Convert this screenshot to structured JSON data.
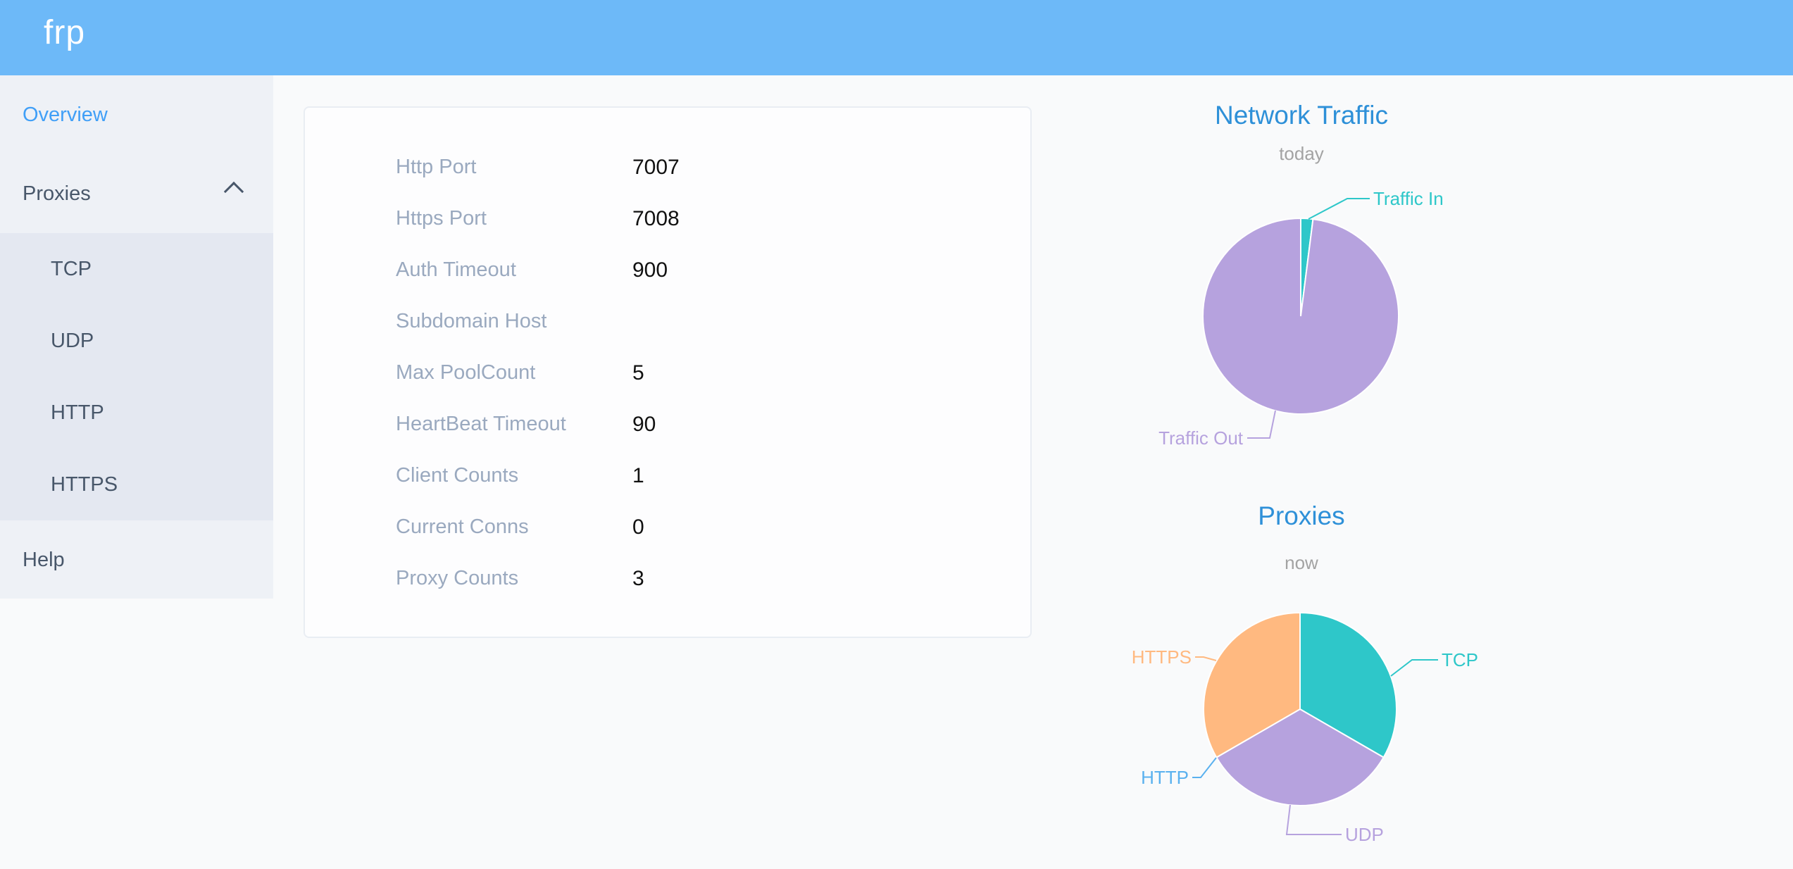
{
  "app": {
    "logo": "frp"
  },
  "colors": {
    "header_bg": "#6db9f8",
    "sidebar_bg": "#eef1f6",
    "submenu_bg": "#e4e8f1",
    "menu_text": "#48576a",
    "menu_active": "#409ff7",
    "chart_title_blue": "#2e90d8",
    "card_label_gray": "#9aa9bf",
    "teal": "#2ec7c9",
    "purple": "#b6a2de",
    "blue": "#5ab1ef",
    "orange": "#ffb980"
  },
  "sidebar": {
    "overview_label": "Overview",
    "proxies_label": "Proxies",
    "proxies_children": [
      {
        "label": "TCP"
      },
      {
        "label": "UDP"
      },
      {
        "label": "HTTP"
      },
      {
        "label": "HTTPS"
      }
    ],
    "help_label": "Help"
  },
  "server_info": {
    "rows": [
      {
        "label": "Http Port",
        "value": "7007"
      },
      {
        "label": "Https Port",
        "value": "7008"
      },
      {
        "label": "Auth Timeout",
        "value": "900"
      },
      {
        "label": "Subdomain Host",
        "value": ""
      },
      {
        "label": "Max PoolCount",
        "value": "5"
      },
      {
        "label": "HeartBeat Timeout",
        "value": "90"
      },
      {
        "label": "Client Counts",
        "value": "1"
      },
      {
        "label": "Current Conns",
        "value": "0"
      },
      {
        "label": "Proxy Counts",
        "value": "3"
      }
    ]
  },
  "chart_data": [
    {
      "type": "pie",
      "title": "Network Traffic",
      "subtitle": "today",
      "unit": "percent of total traffic (estimated from pie angles)",
      "legend_position": "leader-line labels",
      "series": [
        {
          "name": "Traffic In",
          "value": 2,
          "color": "#2ec7c9"
        },
        {
          "name": "Traffic Out",
          "value": 98,
          "color": "#b6a2de"
        }
      ]
    },
    {
      "type": "pie",
      "title": "Proxies",
      "subtitle": "now",
      "unit": "proxy count",
      "legend_position": "leader-line labels",
      "series": [
        {
          "name": "TCP",
          "value": 1,
          "color": "#2ec7c9"
        },
        {
          "name": "UDP",
          "value": 1,
          "color": "#b6a2de"
        },
        {
          "name": "HTTP",
          "value": 0,
          "color": "#5ab1ef"
        },
        {
          "name": "HTTPS",
          "value": 1,
          "color": "#ffb980"
        }
      ]
    }
  ]
}
